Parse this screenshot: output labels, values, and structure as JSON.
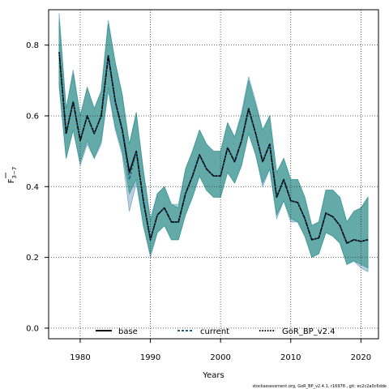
{
  "chart_data": {
    "type": "line",
    "xlabel": "Years",
    "ylabel": "F",
    "ylabel_sub": "3−7",
    "xlim": [
      1975.5,
      2022.5
    ],
    "ylim": [
      -0.03,
      0.9
    ],
    "x_ticks": [
      1980,
      1990,
      2000,
      2010,
      2020
    ],
    "x_tick_labels": [
      "1980",
      "1990",
      "2000",
      "2010",
      "2020"
    ],
    "y_ticks": [
      0.0,
      0.2,
      0.4,
      0.6,
      0.8
    ],
    "y_tick_labels": [
      "0.0",
      "0.2",
      "0.4",
      "0.6",
      "0.8"
    ],
    "grid": true,
    "legend_position": "bottom",
    "x": [
      1977,
      1978,
      1979,
      1980,
      1981,
      1982,
      1983,
      1984,
      1985,
      1986,
      1987,
      1988,
      1989,
      1990,
      1991,
      1992,
      1993,
      1994,
      1995,
      1996,
      1997,
      1998,
      1999,
      2000,
      2001,
      2002,
      2003,
      2004,
      2005,
      2006,
      2007,
      2008,
      2009,
      2010,
      2011,
      2012,
      2013,
      2014,
      2015,
      2016,
      2017,
      2018,
      2019,
      2020,
      2021
    ],
    "series": [
      {
        "name": "base",
        "color": "#000000",
        "dash": "solid",
        "values": [
          0.78,
          0.55,
          0.64,
          0.53,
          0.6,
          0.55,
          0.6,
          0.77,
          0.64,
          0.56,
          0.44,
          0.5,
          0.36,
          0.25,
          0.32,
          0.34,
          0.3,
          0.3,
          0.38,
          0.43,
          0.49,
          0.45,
          0.43,
          0.43,
          0.51,
          0.47,
          0.53,
          0.62,
          0.55,
          0.47,
          0.52,
          0.37,
          0.42,
          0.36,
          0.355,
          0.31,
          0.25,
          0.255,
          0.325,
          0.315,
          0.29,
          0.24,
          0.25,
          0.245,
          0.25
        ]
      },
      {
        "name": "current",
        "color": "#1f5f8b",
        "dash": "dashed",
        "values": [
          0.78,
          0.55,
          0.64,
          0.53,
          0.6,
          0.55,
          0.6,
          0.77,
          0.64,
          0.56,
          0.42,
          0.5,
          0.36,
          0.25,
          0.32,
          0.34,
          0.3,
          0.3,
          0.38,
          0.43,
          0.49,
          0.45,
          0.43,
          0.43,
          0.51,
          0.47,
          0.53,
          0.62,
          0.55,
          0.47,
          0.52,
          0.37,
          0.42,
          0.36,
          0.355,
          0.31,
          0.25,
          0.255,
          0.325,
          0.315,
          0.29,
          0.24,
          0.25,
          0.245,
          0.25
        ]
      },
      {
        "name": "GoR_BP_v2.4",
        "color": "#000000",
        "dash": "dotted",
        "values": [
          0.78,
          0.55,
          0.64,
          0.53,
          0.6,
          0.55,
          0.6,
          0.77,
          0.64,
          0.56,
          0.44,
          0.5,
          0.36,
          0.25,
          0.32,
          0.34,
          0.3,
          0.3,
          0.38,
          0.43,
          0.49,
          0.45,
          0.43,
          0.43,
          0.51,
          0.47,
          0.53,
          0.62,
          0.55,
          0.47,
          0.52,
          0.37,
          0.42,
          0.36,
          0.355,
          0.31,
          0.25,
          0.255,
          0.325,
          0.315,
          0.29,
          0.24,
          0.25,
          0.245,
          0.25
        ]
      }
    ],
    "bands": [
      {
        "name": "current",
        "color": "#7ba7c9",
        "lower": [
          0.68,
          0.48,
          0.56,
          0.46,
          0.52,
          0.48,
          0.52,
          0.67,
          0.56,
          0.49,
          0.33,
          0.41,
          0.29,
          0.2,
          0.27,
          0.29,
          0.25,
          0.25,
          0.32,
          0.37,
          0.43,
          0.39,
          0.37,
          0.37,
          0.44,
          0.41,
          0.46,
          0.55,
          0.49,
          0.4,
          0.45,
          0.31,
          0.36,
          0.3,
          0.3,
          0.26,
          0.2,
          0.21,
          0.27,
          0.26,
          0.24,
          0.18,
          0.19,
          0.17,
          0.16
        ],
        "upper": [
          0.89,
          0.62,
          0.73,
          0.6,
          0.68,
          0.62,
          0.67,
          0.87,
          0.75,
          0.65,
          0.52,
          0.6,
          0.45,
          0.31,
          0.38,
          0.4,
          0.35,
          0.35,
          0.45,
          0.5,
          0.56,
          0.52,
          0.5,
          0.5,
          0.58,
          0.54,
          0.61,
          0.71,
          0.64,
          0.56,
          0.6,
          0.44,
          0.48,
          0.42,
          0.42,
          0.37,
          0.29,
          0.3,
          0.39,
          0.39,
          0.37,
          0.3,
          0.33,
          0.34,
          0.37
        ]
      },
      {
        "name": "GoR_BP_v2.4",
        "color": "#3e9a92",
        "lower": [
          0.69,
          0.48,
          0.56,
          0.47,
          0.53,
          0.48,
          0.53,
          0.68,
          0.57,
          0.5,
          0.38,
          0.42,
          0.29,
          0.21,
          0.27,
          0.29,
          0.25,
          0.25,
          0.32,
          0.37,
          0.43,
          0.39,
          0.37,
          0.37,
          0.44,
          0.41,
          0.46,
          0.55,
          0.49,
          0.41,
          0.45,
          0.32,
          0.36,
          0.31,
          0.3,
          0.26,
          0.2,
          0.21,
          0.27,
          0.26,
          0.24,
          0.18,
          0.19,
          0.18,
          0.17
        ],
        "upper": [
          0.87,
          0.62,
          0.72,
          0.6,
          0.68,
          0.62,
          0.67,
          0.86,
          0.75,
          0.66,
          0.52,
          0.61,
          0.44,
          0.3,
          0.38,
          0.4,
          0.35,
          0.34,
          0.45,
          0.5,
          0.56,
          0.52,
          0.5,
          0.5,
          0.58,
          0.54,
          0.6,
          0.7,
          0.63,
          0.56,
          0.6,
          0.44,
          0.48,
          0.42,
          0.42,
          0.37,
          0.29,
          0.3,
          0.39,
          0.39,
          0.37,
          0.3,
          0.33,
          0.34,
          0.37
        ]
      }
    ]
  },
  "footnote": "stockassessment.org, GoR_BP_v2.4.1, r16978 , git: ec2c2a0c6dde"
}
